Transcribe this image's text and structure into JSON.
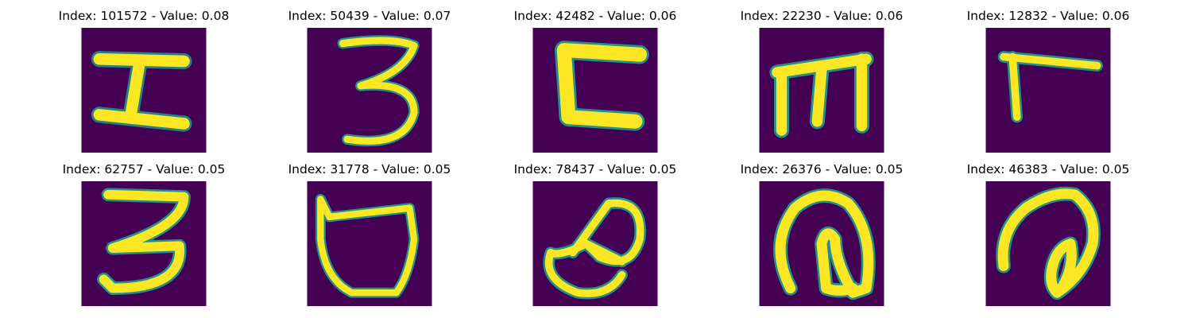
{
  "palette": {
    "background": "#440154",
    "mid": "#21918c",
    "high": "#fde725"
  },
  "samples": [
    {
      "title": "Index: 101572 - Value: 0.08",
      "glyph": "glyph-h-shape"
    },
    {
      "title": "Index: 50439 - Value: 0.07",
      "glyph": "glyph-three"
    },
    {
      "title": "Index: 42482 - Value: 0.06",
      "glyph": "glyph-c-shape"
    },
    {
      "title": "Index: 22230 - Value: 0.06",
      "glyph": "glyph-m-shape"
    },
    {
      "title": "Index: 12832 - Value: 0.06",
      "glyph": "glyph-seven"
    },
    {
      "title": "Index: 62757 - Value: 0.05",
      "glyph": "glyph-three"
    },
    {
      "title": "Index: 31778 - Value: 0.05",
      "glyph": "glyph-u-shape"
    },
    {
      "title": "Index: 78437 - Value: 0.05",
      "glyph": "glyph-loop-a"
    },
    {
      "title": "Index: 26376 - Value: 0.05",
      "glyph": "glyph-loop-b"
    },
    {
      "title": "Index: 46383 - Value: 0.05",
      "glyph": "glyph-loop-c"
    }
  ]
}
